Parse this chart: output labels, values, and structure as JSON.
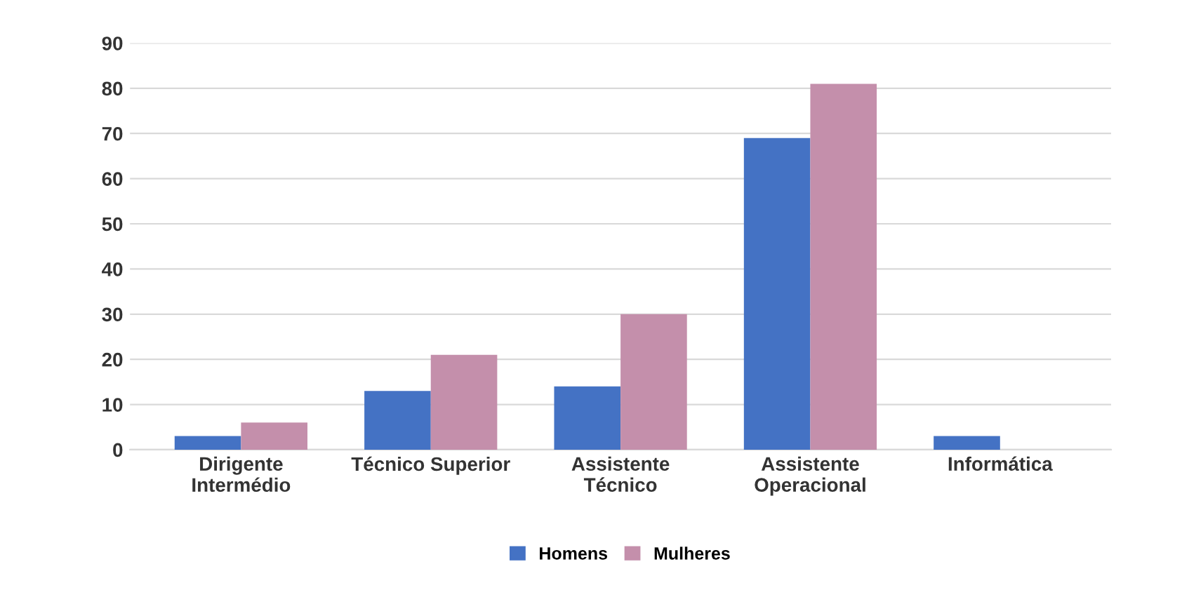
{
  "chart_data": {
    "type": "bar",
    "categories": [
      "Dirigente\nIntermédio",
      "Técnico Superior",
      "Assistente\nTécnico",
      "Assistente\nOperacional",
      "Informática"
    ],
    "series": [
      {
        "name": "Homens",
        "color": "#4472c4",
        "values": [
          3,
          13,
          14,
          69,
          3
        ]
      },
      {
        "name": "Mulheres",
        "color": "#c48fab",
        "values": [
          6,
          21,
          30,
          81,
          0
        ]
      }
    ],
    "ylim": [
      0,
      90
    ],
    "yticks": [
      0,
      10,
      20,
      30,
      40,
      50,
      60,
      70,
      80,
      90
    ],
    "grid": "y",
    "legend": "bottom"
  }
}
